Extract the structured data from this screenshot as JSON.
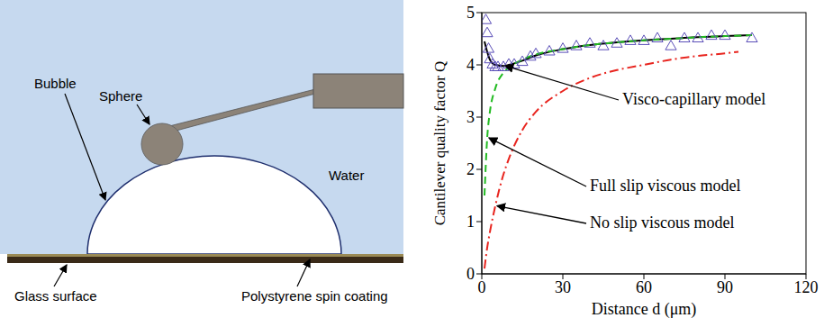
{
  "diagram": {
    "labels": {
      "sphere": "Sphere",
      "bubble": "Bubble",
      "water": "Water",
      "glass": "Glass surface",
      "coating": "Polystyrene spin coating"
    }
  },
  "chart_data": {
    "type": "line",
    "x_label": "Distance d (μm)",
    "y_label": "Cantilever quality factor Q",
    "xlim": [
      0,
      120
    ],
    "xticks": [
      0,
      30,
      60,
      90,
      120
    ],
    "ylim": [
      0,
      5
    ],
    "yticks": [
      0,
      1,
      2,
      3,
      4,
      5
    ],
    "series": [
      {
        "type": "scatter",
        "marker": "triangle",
        "color": "#5b4fb8",
        "x": [
          1.5,
          2,
          2.5,
          3,
          4,
          5,
          6,
          8,
          10,
          12,
          15,
          18,
          20,
          25,
          30,
          35,
          40,
          45,
          50,
          55,
          60,
          65,
          70,
          75,
          80,
          85,
          90,
          100
        ],
        "values": [
          4.85,
          4.6,
          4.3,
          4.1,
          4.0,
          3.95,
          3.95,
          3.95,
          4.0,
          4.0,
          4.05,
          4.15,
          4.2,
          4.25,
          4.3,
          4.35,
          4.4,
          4.35,
          4.4,
          4.45,
          4.45,
          4.5,
          4.35,
          4.5,
          4.5,
          4.55,
          4.55,
          4.5
        ]
      },
      {
        "name": "Visco-capillary model",
        "type": "line",
        "color": "#000000",
        "line_style": "solid",
        "x": [
          1,
          2,
          3,
          5,
          8,
          10,
          15,
          20,
          30,
          40,
          50,
          60,
          70,
          80,
          90,
          100
        ],
        "values": [
          4.45,
          4.25,
          4.1,
          4.0,
          3.98,
          4.0,
          4.08,
          4.18,
          4.3,
          4.38,
          4.43,
          4.47,
          4.5,
          4.53,
          4.55,
          4.57
        ]
      },
      {
        "name": "Full slip viscous model",
        "type": "line",
        "color": "#22bb22",
        "line_style": "dashed",
        "x": [
          1,
          2,
          3,
          5,
          8,
          10,
          15,
          20,
          30,
          40,
          50,
          60,
          70,
          80,
          90,
          100
        ],
        "values": [
          1.5,
          2.6,
          3.1,
          3.55,
          3.85,
          3.95,
          4.1,
          4.2,
          4.3,
          4.38,
          4.43,
          4.47,
          4.5,
          4.53,
          4.55,
          4.57
        ]
      },
      {
        "name": "No slip viscous model",
        "type": "line",
        "color": "#e8251f",
        "line_style": "dashdot",
        "x": [
          1,
          2,
          3,
          5,
          8,
          10,
          15,
          20,
          30,
          40,
          50,
          60,
          70,
          80,
          90,
          95
        ],
        "values": [
          0.1,
          0.5,
          0.8,
          1.3,
          1.9,
          2.2,
          2.75,
          3.1,
          3.5,
          3.75,
          3.9,
          4.0,
          4.1,
          4.17,
          4.22,
          4.25
        ]
      }
    ]
  }
}
